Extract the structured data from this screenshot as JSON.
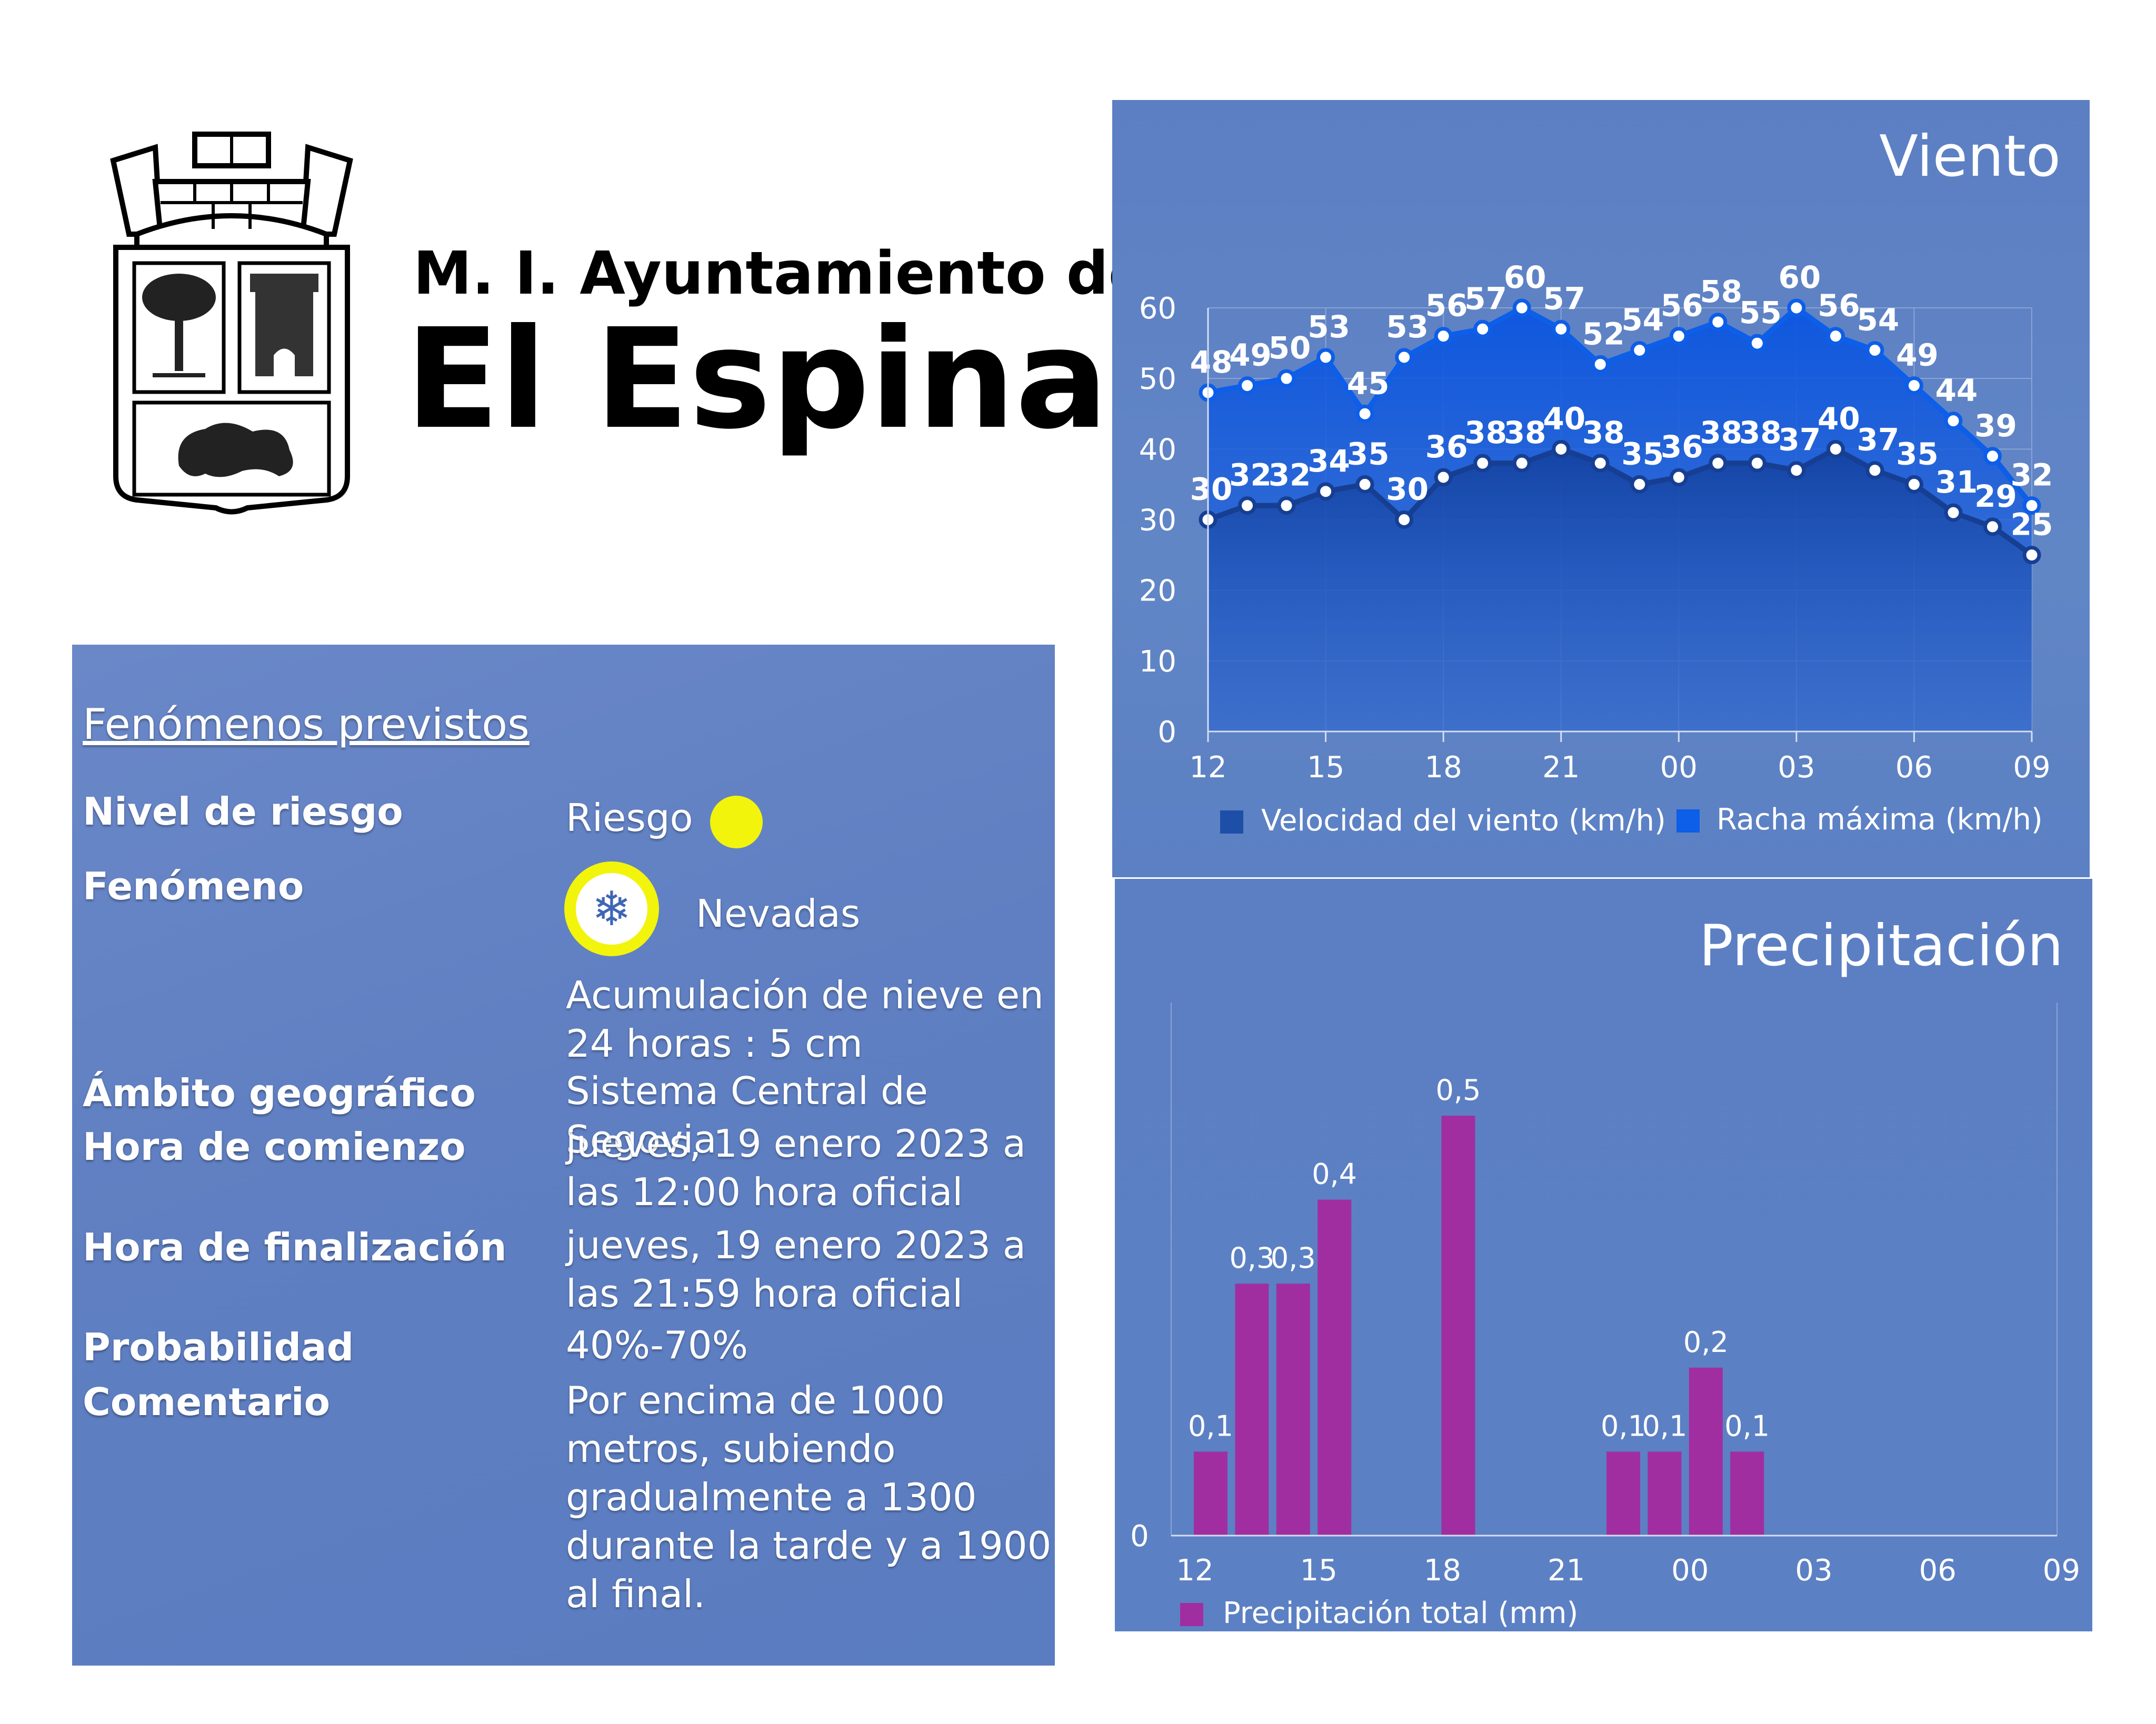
{
  "header": {
    "line1": "M. I. Ayuntamiento de",
    "line2": "El Espinar"
  },
  "info": {
    "title": "Fenómenos previstos",
    "rows": [
      {
        "label": "Nivel de riesgo",
        "value": "Riesgo"
      },
      {
        "label": "Fenómeno",
        "value": "Nevadas"
      },
      {
        "label": "",
        "value": "Acumulación de nieve en 24 horas : 5 cm"
      },
      {
        "label": "Ámbito geográfico",
        "value": "Sistema Central de Segovia"
      },
      {
        "label": "Hora de comienzo",
        "value": "jueves, 19 enero 2023 a las 12:00 hora oficial"
      },
      {
        "label": "Hora de finalización",
        "value": "jueves, 19 enero 2023 a las 21:59 hora oficial"
      },
      {
        "label": "Probabilidad",
        "value": "40%-70%"
      },
      {
        "label": "Comentario",
        "value": "Por encima de 1000 metros, subiendo gradualmente a 1300 durante la tarde y a 1900 al final."
      }
    ],
    "risk_color": "#f2f40c",
    "phenomenon_icon": "snowflake-icon"
  },
  "chart_data": [
    {
      "type": "area",
      "title": "Viento",
      "x": [
        "12",
        "13",
        "14",
        "15",
        "16",
        "17",
        "18",
        "19",
        "20",
        "21",
        "22",
        "23",
        "00",
        "01",
        "02",
        "03",
        "04",
        "05",
        "06",
        "07",
        "08",
        "09"
      ],
      "xticks": [
        "12",
        "15",
        "18",
        "21",
        "00",
        "03",
        "06",
        "09"
      ],
      "ylim": [
        0,
        60
      ],
      "yticks": [
        0,
        10,
        20,
        30,
        40,
        50,
        60
      ],
      "series": [
        {
          "name": "Velocidad del viento (km/h)",
          "color": "#1d4fa8",
          "values": [
            30,
            32,
            32,
            34,
            35,
            30,
            36,
            38,
            38,
            40,
            38,
            35,
            36,
            38,
            38,
            37,
            40,
            37,
            35,
            31,
            29,
            25
          ]
        },
        {
          "name": "Racha máxima (km/h)",
          "color": "#0d5ee8",
          "values": [
            48,
            49,
            50,
            53,
            45,
            53,
            56,
            57,
            60,
            57,
            52,
            54,
            56,
            58,
            55,
            60,
            56,
            54,
            49,
            44,
            39,
            32
          ]
        }
      ],
      "legend_position": "bottom"
    },
    {
      "type": "bar",
      "title": "Precipitación",
      "x": [
        "12",
        "13",
        "14",
        "15",
        "16",
        "17",
        "18",
        "19",
        "20",
        "21",
        "22",
        "23",
        "00",
        "01",
        "02",
        "03",
        "04",
        "05",
        "06",
        "07",
        "08",
        "09"
      ],
      "xticks": [
        "12",
        "15",
        "18",
        "21",
        "00",
        "03",
        "06",
        "09"
      ],
      "ylim": [
        0,
        0.5
      ],
      "yticks": [
        "0"
      ],
      "series": [
        {
          "name": "Precipitación total (mm)",
          "color": "#a12ea1",
          "values": [
            0.1,
            0.3,
            0.3,
            0.4,
            null,
            null,
            0.5,
            null,
            null,
            null,
            0.1,
            0.1,
            0.2,
            0.1,
            null,
            null,
            null,
            null,
            null,
            null,
            null,
            null
          ],
          "labels": [
            "0,1",
            "0,3",
            "0,3",
            "0,4",
            "",
            "",
            "0,5",
            "",
            "",
            "",
            "0,1",
            "0,1",
            "0,2",
            "0,1",
            "",
            "",
            "",
            "",
            "",
            "",
            "",
            ""
          ]
        }
      ],
      "legend_position": "bottom"
    }
  ]
}
